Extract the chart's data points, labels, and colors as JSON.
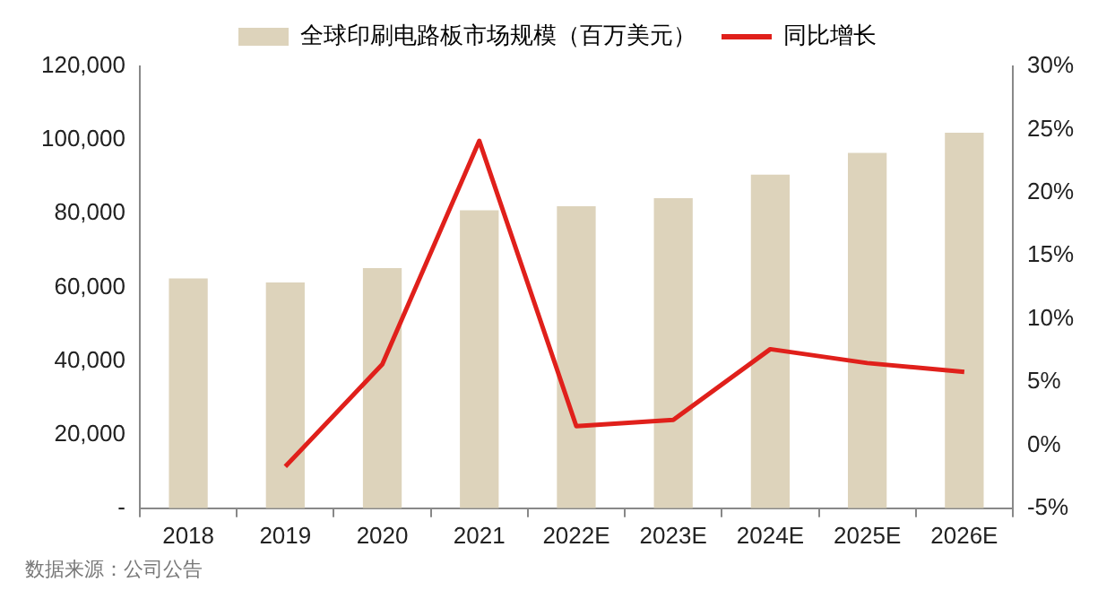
{
  "chart_data": {
    "type": "bar",
    "categories": [
      "2018",
      "2019",
      "2020",
      "2021",
      "2022E",
      "2023E",
      "2024E",
      "2025E",
      "2026E"
    ],
    "series": [
      {
        "name": "全球印刷电路板市场规模（百万美元）",
        "color": "#ddd3bb",
        "values": [
          62400,
          61300,
          65200,
          80900,
          82000,
          84200,
          90600,
          96500,
          102000
        ]
      },
      {
        "name": "同比增长",
        "type": "line",
        "axis": "y2",
        "color": "#e0201b",
        "values": [
          null,
          -1.7,
          6.4,
          24.1,
          1.5,
          2.0,
          7.6,
          6.5,
          5.8
        ]
      }
    ],
    "ylim": [
      0,
      120000
    ],
    "yticks": [
      {
        "value": 0,
        "label": "-"
      },
      {
        "value": 20000,
        "label": "20,000"
      },
      {
        "value": 40000,
        "label": "40,000"
      },
      {
        "value": 60000,
        "label": "60,000"
      },
      {
        "value": 80000,
        "label": "80,000"
      },
      {
        "value": 100000,
        "label": "100,000"
      },
      {
        "value": 120000,
        "label": "120,000"
      }
    ],
    "y2lim": [
      -5,
      30
    ],
    "y2ticks": [
      {
        "value": -5,
        "label": "-5%"
      },
      {
        "value": 0,
        "label": "0%"
      },
      {
        "value": 5,
        "label": "5%"
      },
      {
        "value": 10,
        "label": "10%"
      },
      {
        "value": 15,
        "label": "15%"
      },
      {
        "value": 20,
        "label": "20%"
      },
      {
        "value": 25,
        "label": "25%"
      },
      {
        "value": 30,
        "label": "30%"
      }
    ],
    "grid": false,
    "legend": "top",
    "marker": "none",
    "annotations": [
      "数据来源：公司公告"
    ]
  }
}
